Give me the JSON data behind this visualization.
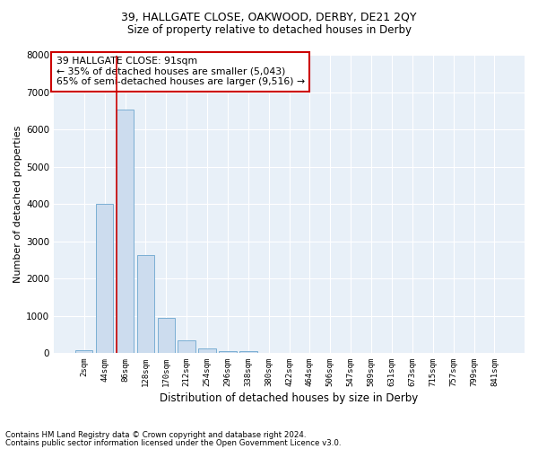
{
  "title1": "39, HALLGATE CLOSE, OAKWOOD, DERBY, DE21 2QY",
  "title2": "Size of property relative to detached houses in Derby",
  "xlabel": "Distribution of detached houses by size in Derby",
  "ylabel": "Number of detached properties",
  "footnote1": "Contains HM Land Registry data © Crown copyright and database right 2024.",
  "footnote2": "Contains public sector information licensed under the Open Government Licence v3.0.",
  "annotation_line1": "39 HALLGATE CLOSE: 91sqm",
  "annotation_line2": "← 35% of detached houses are smaller (5,043)",
  "annotation_line3": "65% of semi-detached houses are larger (9,516) →",
  "bar_labels": [
    "2sqm",
    "44sqm",
    "86sqm",
    "128sqm",
    "170sqm",
    "212sqm",
    "254sqm",
    "296sqm",
    "338sqm",
    "380sqm",
    "422sqm",
    "464sqm",
    "506sqm",
    "547sqm",
    "589sqm",
    "631sqm",
    "673sqm",
    "715sqm",
    "757sqm",
    "799sqm",
    "841sqm"
  ],
  "bar_values": [
    60,
    4000,
    6550,
    2620,
    950,
    330,
    110,
    55,
    35,
    10,
    5,
    0,
    0,
    0,
    0,
    0,
    0,
    0,
    0,
    0,
    0
  ],
  "bar_color": "#ccdcee",
  "bar_edge_color": "#7bafd4",
  "vline_x_idx": 2,
  "vline_color": "#cc0000",
  "ylim": [
    0,
    8000
  ],
  "yticks": [
    0,
    1000,
    2000,
    3000,
    4000,
    5000,
    6000,
    7000,
    8000
  ],
  "plot_bg_color": "#e8f0f8",
  "grid_color": "#ffffff",
  "title1_fontsize": 9,
  "title2_fontsize": 8.5
}
